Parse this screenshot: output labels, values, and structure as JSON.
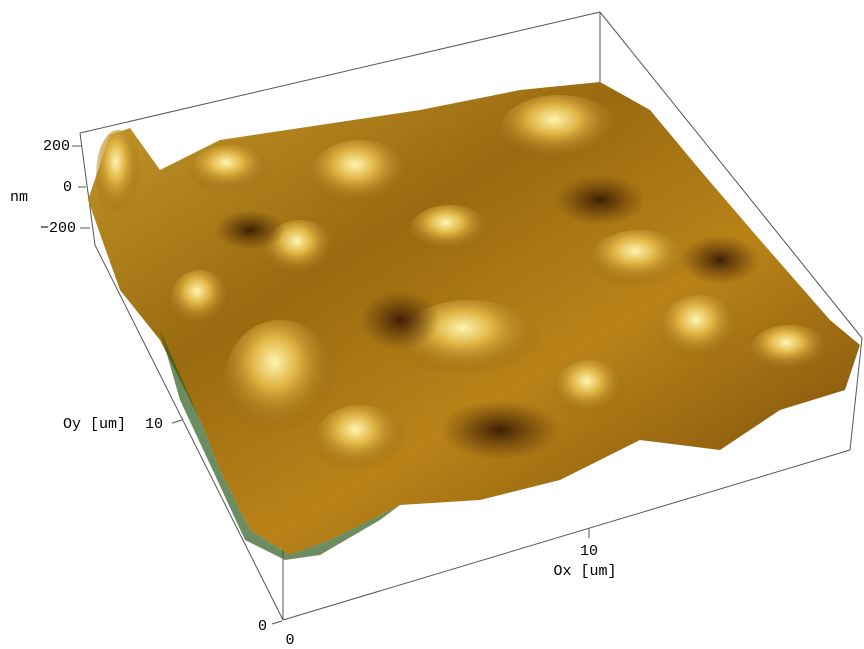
{
  "z_axis": {
    "ticks": [
      "200",
      "0",
      "−200"
    ],
    "label": "nm"
  },
  "y_axis": {
    "label": "Oy [um]",
    "ticks": [
      "10",
      "0"
    ]
  },
  "x_axis": {
    "label": "Ox [um]",
    "ticks": [
      "0",
      "10"
    ]
  }
}
